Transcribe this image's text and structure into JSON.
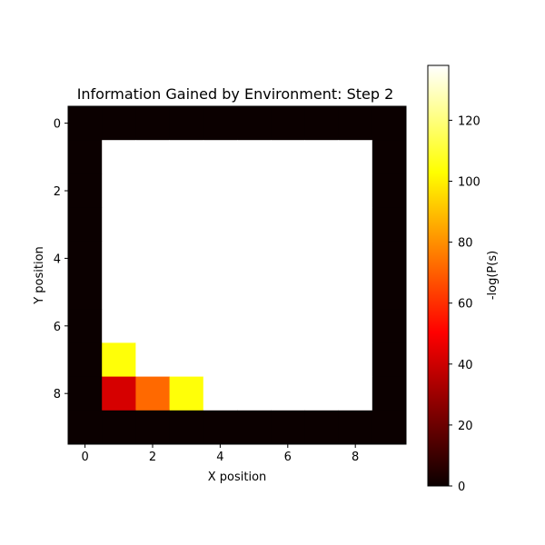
{
  "chart_data": {
    "type": "heatmap",
    "title": "Information Gained by Environment: Step 2",
    "xlabel": "X position",
    "ylabel": "Y position",
    "x_ticks": [
      0,
      2,
      4,
      6,
      8
    ],
    "y_ticks": [
      0,
      2,
      4,
      6,
      8
    ],
    "xlim": [
      -0.5,
      9.5
    ],
    "ylim": [
      9.5,
      -0.5
    ],
    "grid": false,
    "colormap": "hot",
    "colorbar": {
      "label": "-log(P(s)",
      "range": [
        0,
        138
      ],
      "ticks": [
        0,
        20,
        40,
        60,
        80,
        100,
        120
      ]
    },
    "values": [
      [
        0,
        0,
        0,
        0,
        0,
        0,
        0,
        0,
        0,
        0
      ],
      [
        0,
        138,
        138,
        138,
        138,
        138,
        138,
        138,
        138,
        0
      ],
      [
        0,
        138,
        138,
        138,
        138,
        138,
        138,
        138,
        138,
        0
      ],
      [
        0,
        138,
        138,
        138,
        138,
        138,
        138,
        138,
        138,
        0
      ],
      [
        0,
        138,
        138,
        138,
        138,
        138,
        138,
        138,
        138,
        0
      ],
      [
        0,
        138,
        138,
        138,
        138,
        138,
        138,
        138,
        138,
        0
      ],
      [
        0,
        138,
        138,
        138,
        138,
        138,
        138,
        138,
        138,
        0
      ],
      [
        0,
        104,
        138,
        138,
        138,
        138,
        138,
        138,
        138,
        0
      ],
      [
        0,
        42,
        72,
        104,
        138,
        138,
        138,
        138,
        138,
        0
      ],
      [
        0,
        0,
        0,
        0,
        0,
        0,
        0,
        0,
        0,
        0
      ]
    ]
  }
}
